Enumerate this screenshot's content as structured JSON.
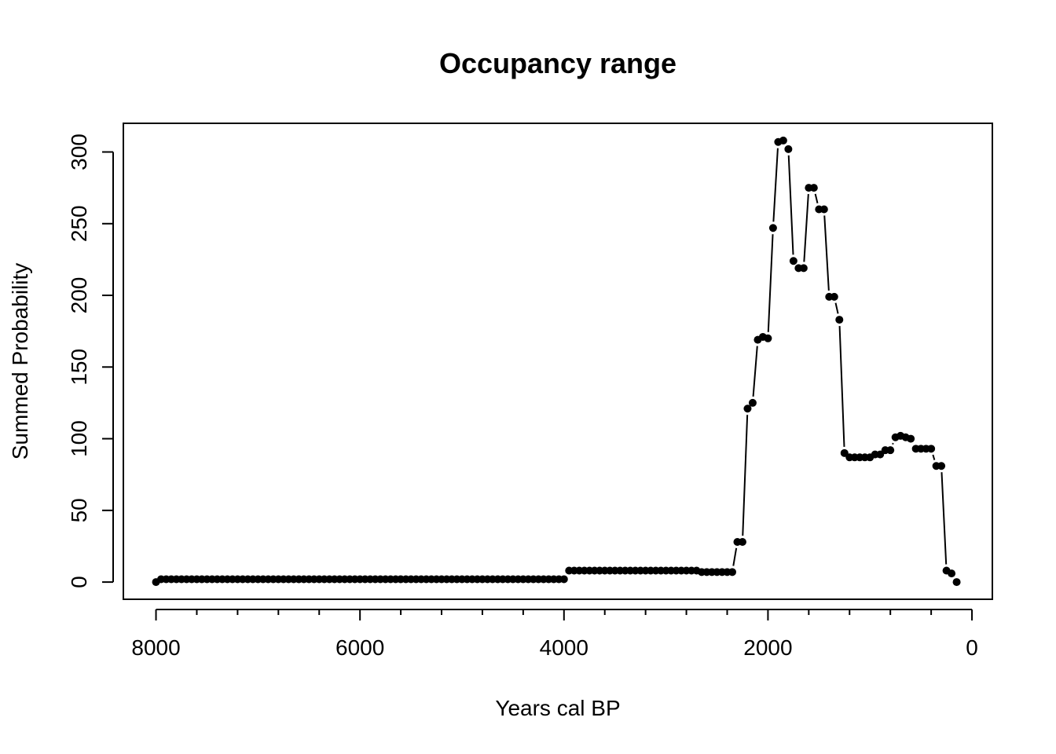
{
  "chart_data": {
    "type": "scatter-line",
    "title": "Occupancy range",
    "x_label": "Years cal BP",
    "y_label": "Summed Probability",
    "color": "#000000",
    "x": [
      8000,
      7950,
      7900,
      7850,
      7800,
      7750,
      7700,
      7650,
      7600,
      7550,
      7500,
      7450,
      7400,
      7350,
      7300,
      7250,
      7200,
      7150,
      7100,
      7050,
      7000,
      6950,
      6900,
      6850,
      6800,
      6750,
      6700,
      6650,
      6600,
      6550,
      6500,
      6450,
      6400,
      6350,
      6300,
      6250,
      6200,
      6150,
      6100,
      6050,
      6000,
      5950,
      5900,
      5850,
      5800,
      5750,
      5700,
      5650,
      5600,
      5550,
      5500,
      5450,
      5400,
      5350,
      5300,
      5250,
      5200,
      5150,
      5100,
      5050,
      5000,
      4950,
      4900,
      4850,
      4800,
      4750,
      4700,
      4650,
      4600,
      4550,
      4500,
      4450,
      4400,
      4350,
      4300,
      4250,
      4200,
      4150,
      4100,
      4050,
      4000,
      3950,
      3900,
      3850,
      3800,
      3750,
      3700,
      3650,
      3600,
      3550,
      3500,
      3450,
      3400,
      3350,
      3300,
      3250,
      3200,
      3150,
      3100,
      3050,
      3000,
      2950,
      2900,
      2850,
      2800,
      2750,
      2700,
      2650,
      2600,
      2550,
      2500,
      2450,
      2400,
      2350,
      2300,
      2250,
      2200,
      2150,
      2100,
      2050,
      2000,
      1950,
      1900,
      1850,
      1800,
      1750,
      1700,
      1650,
      1600,
      1550,
      1500,
      1450,
      1400,
      1350,
      1300,
      1250,
      1200,
      1150,
      1100,
      1050,
      1000,
      950,
      900,
      850,
      800,
      750,
      700,
      650,
      600,
      550,
      500,
      450,
      400,
      350,
      300,
      250,
      200,
      150
    ],
    "values": [
      0,
      2,
      2,
      2,
      2,
      2,
      2,
      2,
      2,
      2,
      2,
      2,
      2,
      2,
      2,
      2,
      2,
      2,
      2,
      2,
      2,
      2,
      2,
      2,
      2,
      2,
      2,
      2,
      2,
      2,
      2,
      2,
      2,
      2,
      2,
      2,
      2,
      2,
      2,
      2,
      2,
      2,
      2,
      2,
      2,
      2,
      2,
      2,
      2,
      2,
      2,
      2,
      2,
      2,
      2,
      2,
      2,
      2,
      2,
      2,
      2,
      2,
      2,
      2,
      2,
      2,
      2,
      2,
      2,
      2,
      2,
      2,
      2,
      2,
      2,
      2,
      2,
      2,
      2,
      2,
      2,
      8,
      8,
      8,
      8,
      8,
      8,
      8,
      8,
      8,
      8,
      8,
      8,
      8,
      8,
      8,
      8,
      8,
      8,
      8,
      8,
      8,
      8,
      8,
      8,
      8,
      8,
      7,
      7,
      7,
      7,
      7,
      7,
      7,
      28,
      28,
      121,
      125,
      169,
      171,
      170,
      247,
      307,
      308,
      302,
      224,
      219,
      219,
      275,
      275,
      260,
      260,
      199,
      199,
      183,
      90,
      87,
      87,
      87,
      87,
      87,
      89,
      89,
      92,
      92,
      101,
      102,
      101,
      100,
      93,
      93,
      93,
      93,
      81,
      81,
      8,
      6,
      0
    ],
    "xlim": [
      8320,
      -200
    ],
    "ylim": [
      -12,
      320
    ],
    "xticks": [
      8000,
      6000,
      4000,
      2000,
      0
    ],
    "x_minor_ticks": [
      7600,
      7200,
      6800,
      6400,
      5600,
      5200,
      4800,
      4400,
      3600,
      3200,
      2800,
      2400,
      1600,
      1200,
      800,
      400
    ],
    "yticks": [
      0,
      50,
      100,
      150,
      200,
      250,
      300
    ]
  }
}
